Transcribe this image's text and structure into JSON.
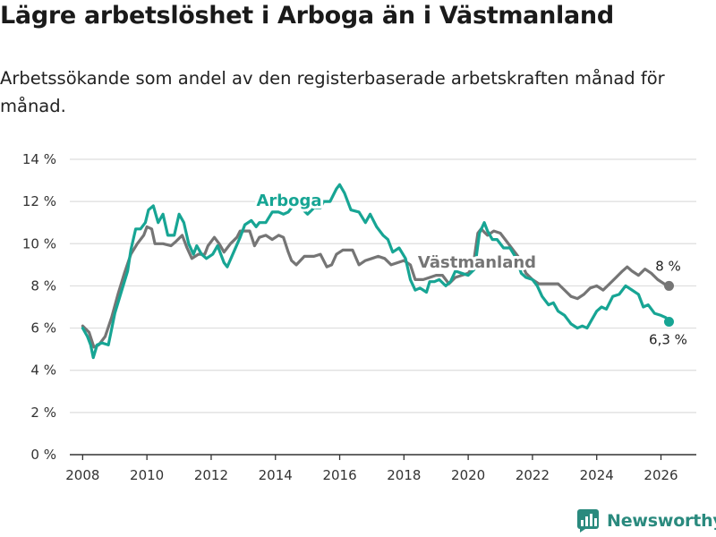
{
  "title": "Lägre arbetslöshet i Arboga än i Västmanland",
  "subtitle": "Arbetssökande som andel av den registerbaserade arbetskraften månad för månad.",
  "brand": "Newsworthy",
  "colors": {
    "arboga": "#17a594",
    "vastmanland": "#757575",
    "grid": "#dddddd",
    "axis": "#333333",
    "brand": "#2a8a7e"
  },
  "chart_data": {
    "type": "line",
    "title": "Lägre arbetslöshet i Arboga än i Västmanland",
    "xlabel": "",
    "ylabel": "",
    "xlim": [
      2007.6,
      2027.1
    ],
    "ylim": [
      0,
      14
    ],
    "x_ticks": [
      2008,
      2010,
      2012,
      2014,
      2016,
      2018,
      2020,
      2022,
      2024,
      2026
    ],
    "x_tick_labels": [
      "2008",
      "2010",
      "2012",
      "2014",
      "2016",
      "2018",
      "2020",
      "2022",
      "2024",
      "2026"
    ],
    "y_ticks": [
      0,
      2,
      4,
      6,
      8,
      10,
      12,
      14
    ],
    "y_tick_labels": [
      "0 %",
      "2 %",
      "4 %",
      "6 %",
      "8 %",
      "10 %",
      "12 %",
      "14 %"
    ],
    "grid": true,
    "series": [
      {
        "name": "Västmanland",
        "label": "Västmanland",
        "color": "#757575",
        "end_label": "8 %",
        "points": [
          [
            2008.0,
            6.1
          ],
          [
            2008.2,
            5.8
          ],
          [
            2008.35,
            5.1
          ],
          [
            2008.5,
            5.2
          ],
          [
            2008.7,
            5.6
          ],
          [
            2008.9,
            6.5
          ],
          [
            2009.1,
            7.6
          ],
          [
            2009.3,
            8.6
          ],
          [
            2009.5,
            9.5
          ],
          [
            2009.7,
            10.0
          ],
          [
            2009.9,
            10.4
          ],
          [
            2010.0,
            10.8
          ],
          [
            2010.15,
            10.7
          ],
          [
            2010.25,
            10.0
          ],
          [
            2010.5,
            10.0
          ],
          [
            2010.75,
            9.9
          ],
          [
            2010.9,
            10.1
          ],
          [
            2011.1,
            10.4
          ],
          [
            2011.25,
            9.8
          ],
          [
            2011.4,
            9.3
          ],
          [
            2011.6,
            9.5
          ],
          [
            2011.8,
            9.5
          ],
          [
            2011.9,
            9.9
          ],
          [
            2012.1,
            10.3
          ],
          [
            2012.25,
            10.0
          ],
          [
            2012.4,
            9.6
          ],
          [
            2012.6,
            10.0
          ],
          [
            2012.8,
            10.3
          ],
          [
            2012.9,
            10.6
          ],
          [
            2013.2,
            10.6
          ],
          [
            2013.35,
            9.9
          ],
          [
            2013.5,
            10.3
          ],
          [
            2013.7,
            10.4
          ],
          [
            2013.9,
            10.2
          ],
          [
            2014.1,
            10.4
          ],
          [
            2014.25,
            10.3
          ],
          [
            2014.4,
            9.6
          ],
          [
            2014.5,
            9.2
          ],
          [
            2014.65,
            9.0
          ],
          [
            2014.9,
            9.4
          ],
          [
            2015.2,
            9.4
          ],
          [
            2015.4,
            9.5
          ],
          [
            2015.6,
            8.9
          ],
          [
            2015.75,
            9.0
          ],
          [
            2015.9,
            9.5
          ],
          [
            2016.1,
            9.7
          ],
          [
            2016.4,
            9.7
          ],
          [
            2016.6,
            9.0
          ],
          [
            2016.8,
            9.2
          ],
          [
            2017.0,
            9.3
          ],
          [
            2017.2,
            9.4
          ],
          [
            2017.4,
            9.3
          ],
          [
            2017.6,
            9.0
          ],
          [
            2017.8,
            9.1
          ],
          [
            2018.0,
            9.2
          ],
          [
            2018.2,
            9.0
          ],
          [
            2018.35,
            8.3
          ],
          [
            2018.6,
            8.3
          ],
          [
            2018.8,
            8.4
          ],
          [
            2019.0,
            8.5
          ],
          [
            2019.2,
            8.5
          ],
          [
            2019.4,
            8.1
          ],
          [
            2019.6,
            8.4
          ],
          [
            2019.8,
            8.5
          ],
          [
            2020.0,
            8.6
          ],
          [
            2020.15,
            8.9
          ],
          [
            2020.3,
            10.5
          ],
          [
            2020.4,
            10.7
          ],
          [
            2020.6,
            10.4
          ],
          [
            2020.8,
            10.6
          ],
          [
            2021.0,
            10.5
          ],
          [
            2021.2,
            10.1
          ],
          [
            2021.4,
            9.7
          ],
          [
            2021.6,
            9.3
          ],
          [
            2021.8,
            8.6
          ],
          [
            2022.0,
            8.3
          ],
          [
            2022.2,
            8.1
          ],
          [
            2022.5,
            8.1
          ],
          [
            2022.8,
            8.1
          ],
          [
            2023.0,
            7.8
          ],
          [
            2023.2,
            7.5
          ],
          [
            2023.4,
            7.4
          ],
          [
            2023.6,
            7.6
          ],
          [
            2023.8,
            7.9
          ],
          [
            2024.0,
            8.0
          ],
          [
            2024.2,
            7.8
          ],
          [
            2024.4,
            8.1
          ],
          [
            2024.6,
            8.4
          ],
          [
            2024.8,
            8.7
          ],
          [
            2024.95,
            8.9
          ],
          [
            2025.1,
            8.7
          ],
          [
            2025.3,
            8.5
          ],
          [
            2025.5,
            8.8
          ],
          [
            2025.7,
            8.6
          ],
          [
            2025.9,
            8.3
          ],
          [
            2026.1,
            8.1
          ],
          [
            2026.25,
            8.0
          ]
        ]
      },
      {
        "name": "Arboga",
        "label": "Arboga",
        "color": "#17a594",
        "end_label": "6,3 %",
        "points": [
          [
            2008.0,
            6.0
          ],
          [
            2008.15,
            5.6
          ],
          [
            2008.25,
            5.2
          ],
          [
            2008.33,
            4.6
          ],
          [
            2008.45,
            5.2
          ],
          [
            2008.6,
            5.3
          ],
          [
            2008.8,
            5.2
          ],
          [
            2009.0,
            6.7
          ],
          [
            2009.2,
            7.7
          ],
          [
            2009.4,
            8.7
          ],
          [
            2009.5,
            9.7
          ],
          [
            2009.65,
            10.7
          ],
          [
            2009.8,
            10.7
          ],
          [
            2009.95,
            11.0
          ],
          [
            2010.05,
            11.6
          ],
          [
            2010.2,
            11.8
          ],
          [
            2010.35,
            11.0
          ],
          [
            2010.5,
            11.4
          ],
          [
            2010.65,
            10.4
          ],
          [
            2010.85,
            10.4
          ],
          [
            2011.0,
            11.4
          ],
          [
            2011.15,
            11.0
          ],
          [
            2011.3,
            10.0
          ],
          [
            2011.45,
            9.5
          ],
          [
            2011.55,
            9.9
          ],
          [
            2011.7,
            9.5
          ],
          [
            2011.85,
            9.3
          ],
          [
            2012.05,
            9.5
          ],
          [
            2012.2,
            9.9
          ],
          [
            2012.4,
            9.1
          ],
          [
            2012.5,
            8.9
          ],
          [
            2012.7,
            9.6
          ],
          [
            2012.9,
            10.3
          ],
          [
            2013.05,
            10.9
          ],
          [
            2013.25,
            11.1
          ],
          [
            2013.4,
            10.8
          ],
          [
            2013.5,
            11.0
          ],
          [
            2013.7,
            11.0
          ],
          [
            2013.9,
            11.5
          ],
          [
            2014.1,
            11.5
          ],
          [
            2014.25,
            11.4
          ],
          [
            2014.4,
            11.5
          ],
          [
            2014.6,
            11.9
          ],
          [
            2014.8,
            11.7
          ],
          [
            2015.0,
            11.4
          ],
          [
            2015.2,
            11.7
          ],
          [
            2015.4,
            11.7
          ],
          [
            2015.5,
            12.0
          ],
          [
            2015.7,
            12.0
          ],
          [
            2015.9,
            12.6
          ],
          [
            2016.0,
            12.8
          ],
          [
            2016.15,
            12.4
          ],
          [
            2016.35,
            11.6
          ],
          [
            2016.6,
            11.5
          ],
          [
            2016.8,
            11.0
          ],
          [
            2016.95,
            11.4
          ],
          [
            2017.15,
            10.8
          ],
          [
            2017.35,
            10.4
          ],
          [
            2017.5,
            10.2
          ],
          [
            2017.65,
            9.6
          ],
          [
            2017.85,
            9.8
          ],
          [
            2018.05,
            9.3
          ],
          [
            2018.2,
            8.3
          ],
          [
            2018.35,
            7.8
          ],
          [
            2018.5,
            7.9
          ],
          [
            2018.7,
            7.7
          ],
          [
            2018.8,
            8.2
          ],
          [
            2018.95,
            8.2
          ],
          [
            2019.1,
            8.3
          ],
          [
            2019.3,
            8.0
          ],
          [
            2019.45,
            8.2
          ],
          [
            2019.6,
            8.7
          ],
          [
            2019.8,
            8.6
          ],
          [
            2020.0,
            8.5
          ],
          [
            2020.2,
            8.8
          ],
          [
            2020.35,
            10.5
          ],
          [
            2020.5,
            11.0
          ],
          [
            2020.6,
            10.6
          ],
          [
            2020.75,
            10.2
          ],
          [
            2020.9,
            10.2
          ],
          [
            2021.1,
            9.8
          ],
          [
            2021.3,
            9.8
          ],
          [
            2021.5,
            9.3
          ],
          [
            2021.65,
            8.6
          ],
          [
            2021.8,
            8.4
          ],
          [
            2022.0,
            8.3
          ],
          [
            2022.15,
            8.0
          ],
          [
            2022.3,
            7.5
          ],
          [
            2022.5,
            7.1
          ],
          [
            2022.65,
            7.2
          ],
          [
            2022.8,
            6.8
          ],
          [
            2023.0,
            6.6
          ],
          [
            2023.2,
            6.2
          ],
          [
            2023.4,
            6.0
          ],
          [
            2023.55,
            6.1
          ],
          [
            2023.7,
            6.0
          ],
          [
            2023.85,
            6.4
          ],
          [
            2024.0,
            6.8
          ],
          [
            2024.15,
            7.0
          ],
          [
            2024.3,
            6.9
          ],
          [
            2024.5,
            7.5
          ],
          [
            2024.7,
            7.6
          ],
          [
            2024.9,
            8.0
          ],
          [
            2025.1,
            7.8
          ],
          [
            2025.3,
            7.6
          ],
          [
            2025.45,
            7.0
          ],
          [
            2025.6,
            7.1
          ],
          [
            2025.8,
            6.7
          ],
          [
            2026.0,
            6.6
          ],
          [
            2026.15,
            6.5
          ],
          [
            2026.25,
            6.3
          ]
        ]
      }
    ]
  }
}
